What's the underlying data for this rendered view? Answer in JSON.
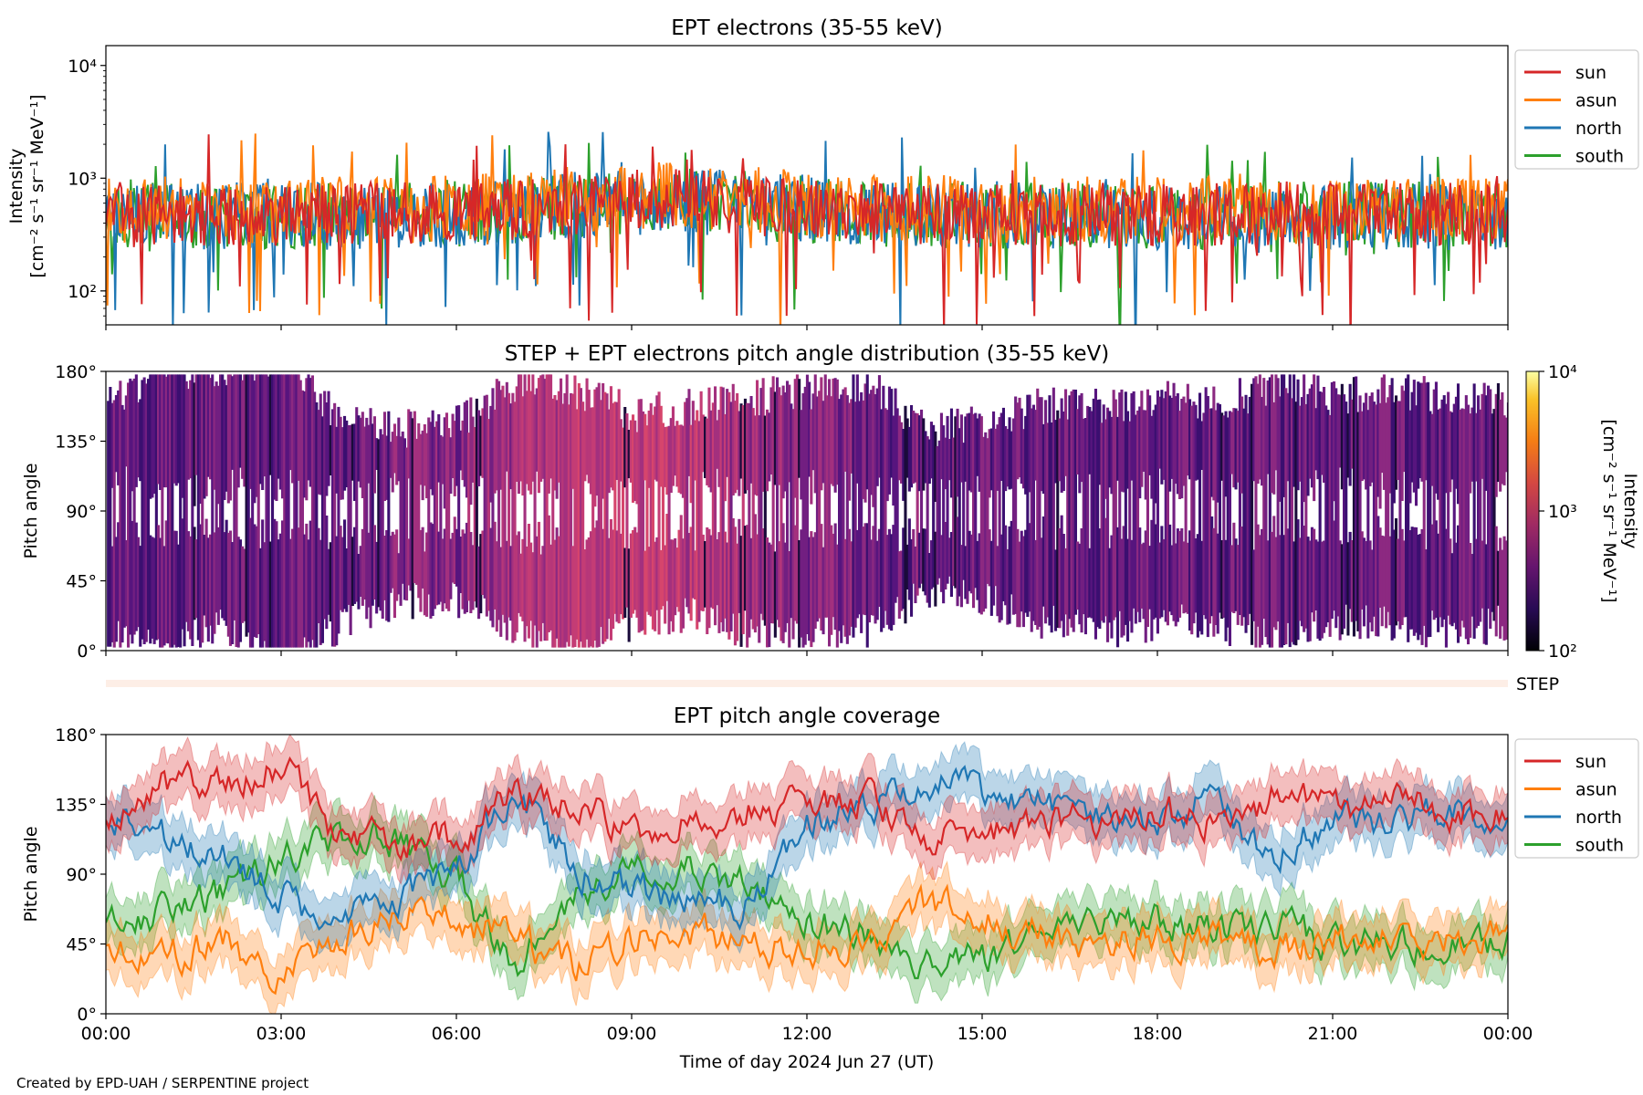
{
  "footer": "Created by EPD-UAH / SERPENTINE project",
  "xlabel": "Time of day 2024 Jun 27 (UT)",
  "colors": {
    "sun": "#d62728",
    "asun": "#ff7f0e",
    "north": "#1f77b4",
    "south": "#2ca02c"
  },
  "chart_data": [
    {
      "type": "line",
      "title": "EPT electrons (35-55 keV)",
      "ylabel_line1": "Intensity",
      "ylabel_line2": "[cm⁻² s⁻¹ sr⁻¹ MeV⁻¹]",
      "yscale": "log",
      "ylim": [
        50,
        15000
      ],
      "yticks": [
        {
          "value": 100,
          "label": "10²"
        },
        {
          "value": 1000,
          "label": "10³"
        },
        {
          "value": 10000,
          "label": "10⁴"
        }
      ],
      "xlim_hours": [
        0,
        24
      ],
      "legend": "outside-right",
      "series": [
        {
          "name": "sun",
          "color_key": "sun",
          "baseline": 480,
          "spread": 0.28
        },
        {
          "name": "asun",
          "color_key": "asun",
          "baseline": 520,
          "spread": 0.3
        },
        {
          "name": "north",
          "color_key": "north",
          "baseline": 460,
          "spread": 0.3
        },
        {
          "name": "south",
          "color_key": "south",
          "baseline": 470,
          "spread": 0.3
        }
      ],
      "legend_labels": [
        "sun",
        "asun",
        "north",
        "south"
      ]
    },
    {
      "type": "heatmap",
      "title": "STEP + EPT electrons pitch angle distribution (35-55 keV)",
      "ylabel": "Pitch angle",
      "ylim": [
        0,
        180
      ],
      "yticks": [
        "0°",
        "45°",
        "90°",
        "135°",
        "180°"
      ],
      "colorbar": {
        "label_line1": "Intensity",
        "label_line2": "[cm⁻² s⁻¹ sr⁻¹ MeV⁻¹]",
        "scale": "log",
        "range": [
          100,
          10000
        ],
        "ticks": [
          "10²",
          "10³",
          "10⁴"
        ],
        "colormap": "inferno"
      },
      "step_label": "STEP"
    },
    {
      "type": "line",
      "title": "EPT pitch angle coverage",
      "ylabel": "Pitch angle",
      "ylim": [
        0,
        180
      ],
      "yticks": [
        "0°",
        "45°",
        "90°",
        "135°",
        "180°"
      ],
      "xticks": [
        "00:00",
        "03:00",
        "06:00",
        "09:00",
        "12:00",
        "15:00",
        "18:00",
        "21:00",
        "00:00"
      ],
      "legend": "outside-right",
      "series": [
        {
          "name": "sun",
          "color_key": "sun",
          "time_h": [
            0,
            1,
            2,
            3,
            4,
            5,
            6,
            7,
            8,
            9,
            10,
            11,
            12,
            13,
            14,
            15,
            16,
            17,
            18,
            19,
            20,
            21,
            22,
            23,
            24
          ],
          "pitch_deg": [
            125,
            150,
            145,
            160,
            115,
            110,
            115,
            140,
            135,
            120,
            125,
            130,
            135,
            140,
            110,
            115,
            125,
            125,
            130,
            125,
            140,
            130,
            135,
            130,
            130
          ]
        },
        {
          "name": "asun",
          "color_key": "asun",
          "time_h": [
            0,
            1,
            2,
            3,
            4,
            5,
            6,
            7,
            8,
            9,
            10,
            11,
            12,
            13,
            14,
            15,
            16,
            17,
            18,
            19,
            20,
            21,
            22,
            23,
            24
          ],
          "pitch_deg": [
            45,
            35,
            50,
            20,
            50,
            65,
            65,
            45,
            30,
            50,
            55,
            45,
            40,
            45,
            70,
            65,
            50,
            45,
            50,
            50,
            40,
            50,
            50,
            45,
            50
          ]
        },
        {
          "name": "north",
          "color_key": "north",
          "time_h": [
            0,
            1,
            2,
            3,
            4,
            5,
            6,
            7,
            8,
            9,
            10,
            11,
            12,
            13,
            14,
            15,
            16,
            17,
            18,
            19,
            20,
            21,
            22,
            23,
            24
          ],
          "pitch_deg": [
            125,
            115,
            105,
            75,
            60,
            75,
            95,
            145,
            95,
            80,
            75,
            70,
            125,
            130,
            150,
            140,
            135,
            130,
            125,
            140,
            100,
            125,
            125,
            130,
            130
          ]
        },
        {
          "name": "south",
          "color_key": "south",
          "time_h": [
            0,
            1,
            2,
            3,
            4,
            5,
            6,
            7,
            8,
            9,
            10,
            11,
            12,
            13,
            14,
            15,
            16,
            17,
            18,
            19,
            20,
            21,
            22,
            23,
            24
          ],
          "pitch_deg": [
            60,
            65,
            75,
            100,
            115,
            110,
            85,
            30,
            70,
            100,
            95,
            85,
            60,
            50,
            35,
            35,
            50,
            55,
            60,
            55,
            60,
            45,
            45,
            45,
            45
          ]
        }
      ],
      "legend_labels": [
        "sun",
        "asun",
        "north",
        "south"
      ]
    }
  ]
}
